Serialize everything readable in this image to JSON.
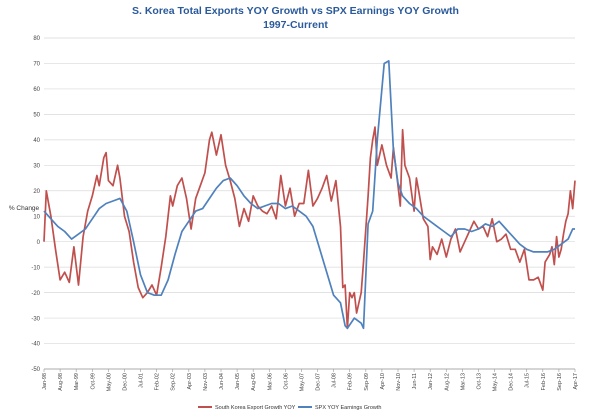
{
  "chart_data": {
    "type": "line",
    "title": "S. Korea Total Exports YOY Growth vs SPX Earnings YOY Growth",
    "subtitle": "1997-Current",
    "ylabel": "% Change",
    "xlabel": "",
    "ylim": [
      -50,
      80
    ],
    "yticks": [
      -50,
      -40,
      -30,
      -20,
      -10,
      0,
      10,
      20,
      30,
      40,
      50,
      60,
      70,
      80
    ],
    "xlim": [
      "Jan-98",
      "Apr-17"
    ],
    "xticks": [
      "Jan-98",
      "Aug-98",
      "Mar-99",
      "Oct-99",
      "May-00",
      "Dec-00",
      "Jul-01",
      "Feb-02",
      "Sep-02",
      "Apr-03",
      "Nov-03",
      "Jun-04",
      "Jan-05",
      "Aug-05",
      "Mar-06",
      "Oct-06",
      "May-07",
      "Dec-07",
      "Jul-08",
      "Feb-09",
      "Sep-09",
      "Apr-10",
      "Nov-10",
      "Jun-11",
      "Jan-12",
      "Aug-12",
      "Mar-13",
      "Oct-13",
      "May-14",
      "Dec-14",
      "Jul-15",
      "Feb-16",
      "Sep-16",
      "Apr-17"
    ],
    "grid": true,
    "legend": "bottom-center",
    "series": [
      {
        "name": "South Korea Export Growth YOY",
        "color": "#c0504d",
        "points": [
          [
            "Jan-98",
            0
          ],
          [
            "Feb-98",
            20
          ],
          [
            "Apr-98",
            10
          ],
          [
            "Jun-98",
            -3
          ],
          [
            "Aug-98",
            -15
          ],
          [
            "Oct-98",
            -12
          ],
          [
            "Dec-98",
            -16
          ],
          [
            "Feb-99",
            -2
          ],
          [
            "Apr-99",
            -17
          ],
          [
            "Jun-99",
            2
          ],
          [
            "Aug-99",
            12
          ],
          [
            "Oct-99",
            18
          ],
          [
            "Dec-99",
            26
          ],
          [
            "Jan-00",
            22
          ],
          [
            "Mar-00",
            33
          ],
          [
            "Apr-00",
            35
          ],
          [
            "May-00",
            24
          ],
          [
            "Jul-00",
            22
          ],
          [
            "Sep-00",
            30
          ],
          [
            "Oct-00",
            25
          ],
          [
            "Dec-00",
            10
          ],
          [
            "Feb-01",
            4
          ],
          [
            "Apr-01",
            -8
          ],
          [
            "Jun-01",
            -18
          ],
          [
            "Aug-01",
            -22
          ],
          [
            "Oct-01",
            -20
          ],
          [
            "Dec-01",
            -17
          ],
          [
            "Feb-02",
            -21
          ],
          [
            "Apr-02",
            -10
          ],
          [
            "Jun-02",
            2
          ],
          [
            "Aug-02",
            18
          ],
          [
            "Sep-02",
            14
          ],
          [
            "Nov-02",
            22
          ],
          [
            "Jan-03",
            25
          ],
          [
            "Mar-03",
            17
          ],
          [
            "May-03",
            5
          ],
          [
            "Jul-03",
            17
          ],
          [
            "Sep-03",
            22
          ],
          [
            "Nov-03",
            27
          ],
          [
            "Jan-04",
            40
          ],
          [
            "Feb-04",
            43
          ],
          [
            "Apr-04",
            34
          ],
          [
            "Jun-04",
            42
          ],
          [
            "Aug-04",
            30
          ],
          [
            "Oct-04",
            24
          ],
          [
            "Dec-04",
            17
          ],
          [
            "Feb-05",
            6
          ],
          [
            "Apr-05",
            13
          ],
          [
            "Jun-05",
            8
          ],
          [
            "Aug-05",
            18
          ],
          [
            "Oct-05",
            14
          ],
          [
            "Dec-05",
            12
          ],
          [
            "Feb-06",
            11
          ],
          [
            "Apr-06",
            14
          ],
          [
            "Jun-06",
            9
          ],
          [
            "Aug-06",
            26
          ],
          [
            "Oct-06",
            14
          ],
          [
            "Dec-06",
            21
          ],
          [
            "Feb-07",
            10
          ],
          [
            "Apr-07",
            15
          ],
          [
            "Jun-07",
            15
          ],
          [
            "Aug-07",
            28
          ],
          [
            "Oct-07",
            14
          ],
          [
            "Dec-07",
            17
          ],
          [
            "Feb-08",
            21
          ],
          [
            "Apr-08",
            26
          ],
          [
            "Jun-08",
            16
          ],
          [
            "Aug-08",
            24
          ],
          [
            "Oct-08",
            6
          ],
          [
            "Nov-08",
            -18
          ],
          [
            "Dec-08",
            -17
          ],
          [
            "Jan-09",
            -34
          ],
          [
            "Feb-09",
            -20
          ],
          [
            "Mar-09",
            -22
          ],
          [
            "Apr-09",
            -20
          ],
          [
            "May-09",
            -28
          ],
          [
            "Jul-09",
            -20
          ],
          [
            "Aug-09",
            -8
          ],
          [
            "Oct-09",
            18
          ],
          [
            "Nov-09",
            33
          ],
          [
            "Dec-09",
            40
          ],
          [
            "Jan-10",
            45
          ],
          [
            "Feb-10",
            30
          ],
          [
            "Apr-10",
            38
          ],
          [
            "Jun-10",
            30
          ],
          [
            "Aug-10",
            25
          ],
          [
            "Sep-10",
            37
          ],
          [
            "Nov-10",
            22
          ],
          [
            "Dec-10",
            14
          ],
          [
            "Jan-11",
            44
          ],
          [
            "Feb-11",
            30
          ],
          [
            "Apr-11",
            25
          ],
          [
            "Jun-11",
            12
          ],
          [
            "Jul-11",
            25
          ],
          [
            "Aug-11",
            20
          ],
          [
            "Oct-11",
            9
          ],
          [
            "Dec-11",
            6
          ],
          [
            "Jan-12",
            -7
          ],
          [
            "Feb-12",
            -2
          ],
          [
            "Apr-12",
            -5
          ],
          [
            "Jun-12",
            1
          ],
          [
            "Aug-12",
            -6
          ],
          [
            "Oct-12",
            1
          ],
          [
            "Dec-12",
            5
          ],
          [
            "Feb-13",
            -4
          ],
          [
            "Apr-13",
            0
          ],
          [
            "Jun-13",
            4
          ],
          [
            "Aug-13",
            8
          ],
          [
            "Oct-13",
            5
          ],
          [
            "Dec-13",
            6
          ],
          [
            "Feb-14",
            2
          ],
          [
            "Apr-14",
            9
          ],
          [
            "Jun-14",
            0
          ],
          [
            "Aug-14",
            1
          ],
          [
            "Oct-14",
            3
          ],
          [
            "Dec-14",
            -3
          ],
          [
            "Feb-15",
            -3
          ],
          [
            "Apr-15",
            -8
          ],
          [
            "Jun-15",
            -3
          ],
          [
            "Aug-15",
            -15
          ],
          [
            "Oct-15",
            -15
          ],
          [
            "Dec-15",
            -14
          ],
          [
            "Feb-16",
            -19
          ],
          [
            "Mar-16",
            -8
          ],
          [
            "May-16",
            -5
          ],
          [
            "Jun-16",
            -2
          ],
          [
            "Jul-16",
            -9
          ],
          [
            "Aug-16",
            2
          ],
          [
            "Sep-16",
            -6
          ],
          [
            "Oct-16",
            -3
          ],
          [
            "Nov-16",
            3
          ],
          [
            "Dec-16",
            8
          ],
          [
            "Jan-17",
            11
          ],
          [
            "Feb-17",
            20
          ],
          [
            "Mar-17",
            13
          ],
          [
            "Apr-17",
            24
          ]
        ]
      },
      {
        "name": "SPX YOY Earnings Growth",
        "color": "#4f81bd",
        "points": [
          [
            "Jan-98",
            12
          ],
          [
            "Apr-98",
            9
          ],
          [
            "Jul-98",
            6
          ],
          [
            "Oct-98",
            4
          ],
          [
            "Jan-99",
            1
          ],
          [
            "Apr-99",
            3
          ],
          [
            "Jul-99",
            5
          ],
          [
            "Oct-99",
            9
          ],
          [
            "Jan-00",
            13
          ],
          [
            "Apr-00",
            15
          ],
          [
            "Jul-00",
            16
          ],
          [
            "Oct-00",
            17
          ],
          [
            "Jan-01",
            12
          ],
          [
            "Apr-01",
            0
          ],
          [
            "Jul-01",
            -13
          ],
          [
            "Oct-01",
            -20
          ],
          [
            "Jan-02",
            -21
          ],
          [
            "Apr-02",
            -21
          ],
          [
            "Jul-02",
            -15
          ],
          [
            "Oct-02",
            -5
          ],
          [
            "Jan-03",
            4
          ],
          [
            "Apr-03",
            8
          ],
          [
            "Jul-03",
            12
          ],
          [
            "Oct-03",
            13
          ],
          [
            "Jan-04",
            17
          ],
          [
            "Apr-04",
            21
          ],
          [
            "Jul-04",
            24
          ],
          [
            "Oct-04",
            25
          ],
          [
            "Jan-05",
            22
          ],
          [
            "Apr-05",
            18
          ],
          [
            "Jul-05",
            15
          ],
          [
            "Oct-05",
            13
          ],
          [
            "Jan-06",
            14
          ],
          [
            "Apr-06",
            15
          ],
          [
            "Jul-06",
            15
          ],
          [
            "Oct-06",
            13
          ],
          [
            "Jan-07",
            14
          ],
          [
            "Apr-07",
            12
          ],
          [
            "Jul-07",
            10
          ],
          [
            "Oct-07",
            6
          ],
          [
            "Jan-08",
            -3
          ],
          [
            "Apr-08",
            -12
          ],
          [
            "Jul-08",
            -21
          ],
          [
            "Oct-08",
            -24
          ],
          [
            "Dec-08",
            -33
          ],
          [
            "Jan-09",
            -34
          ],
          [
            "Apr-09",
            -30
          ],
          [
            "Jul-09",
            -32
          ],
          [
            "Aug-09",
            -34
          ],
          [
            "Oct-09",
            7
          ],
          [
            "Dec-09",
            12
          ],
          [
            "Feb-10",
            40
          ],
          [
            "Apr-10",
            60
          ],
          [
            "May-10",
            70
          ],
          [
            "Jul-10",
            71
          ],
          [
            "Sep-10",
            36
          ],
          [
            "Nov-10",
            23
          ],
          [
            "Jan-11",
            18
          ],
          [
            "Apr-11",
            15
          ],
          [
            "Jul-11",
            13
          ],
          [
            "Oct-11",
            10
          ],
          [
            "Jan-12",
            8
          ],
          [
            "Apr-12",
            6
          ],
          [
            "Jul-12",
            4
          ],
          [
            "Oct-12",
            2
          ],
          [
            "Jan-13",
            5
          ],
          [
            "Apr-13",
            5
          ],
          [
            "Jul-13",
            4
          ],
          [
            "Oct-13",
            5
          ],
          [
            "Jan-14",
            7
          ],
          [
            "Apr-14",
            6
          ],
          [
            "Jul-14",
            8
          ],
          [
            "Oct-14",
            5
          ],
          [
            "Jan-15",
            2
          ],
          [
            "Apr-15",
            -1
          ],
          [
            "Jul-15",
            -3
          ],
          [
            "Oct-15",
            -4
          ],
          [
            "Jan-16",
            -4
          ],
          [
            "Apr-16",
            -4
          ],
          [
            "Jul-16",
            -3
          ],
          [
            "Oct-16",
            -1
          ],
          [
            "Jan-17",
            1
          ],
          [
            "Mar-17",
            5
          ],
          [
            "Apr-17",
            5
          ]
        ]
      }
    ]
  }
}
